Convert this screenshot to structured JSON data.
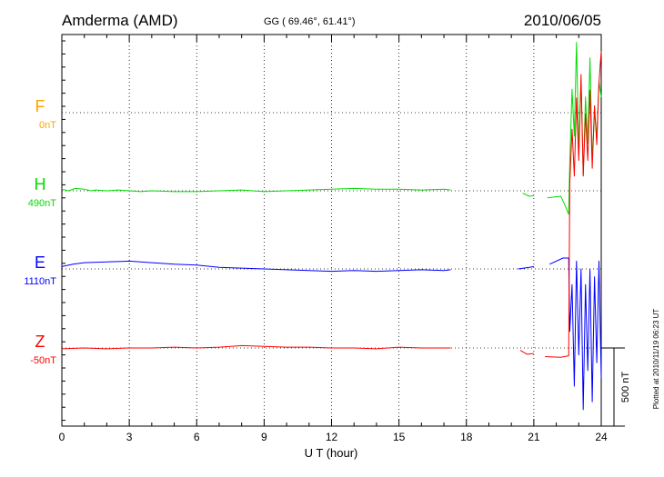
{
  "header": {
    "station": "Amderma (AMD)",
    "coords": "GG ( 69.46°,  61.41°)",
    "date": "2010/06/05"
  },
  "footer": {
    "plotted_note": "Plotted at 2010/11/19 06:23 UT"
  },
  "chart_data": {
    "type": "line",
    "title": "Amderma (AMD)",
    "xlabel": "U T (hour)",
    "xlim": [
      0,
      24
    ],
    "x_ticks": [
      "0",
      "3",
      "6",
      "9",
      "12",
      "15",
      "18",
      "21",
      "24"
    ],
    "grid": true,
    "scale_bar_label": "500 nT",
    "scale_bar_nT": 500,
    "series": [
      {
        "name": "F",
        "baseline_label": "0nT",
        "color": "#ffa500",
        "points": []
      },
      {
        "name": "H",
        "baseline_label": "490nT",
        "color": "#00dd00",
        "points": [
          [
            0,
            10
          ],
          [
            0.3,
            0
          ],
          [
            0.6,
            15
          ],
          [
            1.0,
            10
          ],
          [
            1.3,
            0
          ],
          [
            1.5,
            5
          ],
          [
            2,
            0
          ],
          [
            2.5,
            5
          ],
          [
            3,
            0
          ],
          [
            3.5,
            -5
          ],
          [
            4,
            0
          ],
          [
            5,
            -5
          ],
          [
            6,
            -5
          ],
          [
            7,
            0
          ],
          [
            8,
            5
          ],
          [
            9,
            -5
          ],
          [
            10,
            0
          ],
          [
            11,
            5
          ],
          [
            12,
            10
          ],
          [
            13,
            15
          ],
          [
            14,
            10
          ],
          [
            15,
            10
          ],
          [
            16,
            5
          ],
          [
            17,
            10
          ],
          [
            17.3,
            5
          ],
          null,
          [
            20.5,
            -15
          ],
          [
            20.8,
            -35
          ],
          [
            21.0,
            -30
          ],
          null,
          [
            21.6,
            -45
          ],
          [
            22.2,
            -35
          ],
          [
            22.35,
            -80
          ],
          [
            22.55,
            -150
          ],
          [
            22.6,
            180
          ],
          [
            22.7,
            650
          ],
          [
            22.8,
            350
          ],
          [
            22.9,
            950
          ],
          [
            23.0,
            250
          ],
          [
            23.1,
            700
          ],
          [
            23.2,
            100
          ],
          [
            23.3,
            600
          ],
          [
            23.4,
            300
          ],
          [
            23.5,
            850
          ],
          [
            23.6,
            200
          ],
          [
            23.7,
            500
          ],
          [
            23.8,
            350
          ],
          [
            23.9,
            700
          ],
          [
            24.0,
            600
          ]
        ]
      },
      {
        "name": "E",
        "baseline_label": "1110nT",
        "color": "#0000ff",
        "points": [
          [
            0,
            15
          ],
          [
            0.5,
            30
          ],
          [
            1,
            40
          ],
          [
            2,
            45
          ],
          [
            3,
            50
          ],
          [
            3.5,
            45
          ],
          [
            4,
            40
          ],
          [
            5,
            30
          ],
          [
            6,
            25
          ],
          [
            7,
            10
          ],
          [
            8,
            5
          ],
          [
            9,
            0
          ],
          [
            10,
            -5
          ],
          [
            11,
            -10
          ],
          [
            12,
            -15
          ],
          [
            13,
            -10
          ],
          [
            14,
            -15
          ],
          [
            15,
            -10
          ],
          [
            16,
            -5
          ],
          [
            17,
            -10
          ],
          [
            17.3,
            -5
          ],
          null,
          [
            20.3,
            0
          ],
          [
            20.8,
            10
          ],
          [
            21.0,
            15
          ],
          null,
          [
            21.7,
            30
          ],
          [
            22.3,
            70
          ],
          [
            22.55,
            70
          ],
          [
            22.6,
            -400
          ],
          [
            22.7,
            -100
          ],
          [
            22.8,
            -750
          ],
          [
            22.9,
            50
          ],
          [
            23.0,
            -550
          ],
          [
            23.1,
            0
          ],
          [
            23.2,
            -900
          ],
          [
            23.3,
            -100
          ],
          [
            23.4,
            -650
          ],
          [
            23.5,
            0
          ],
          [
            23.6,
            -850
          ],
          [
            23.7,
            -50
          ],
          [
            23.8,
            -600
          ],
          [
            23.9,
            50
          ],
          [
            24.0,
            -700
          ]
        ]
      },
      {
        "name": "Z",
        "baseline_label": "-50nT",
        "color": "#ff0000",
        "points": [
          [
            0,
            -5
          ],
          [
            1,
            0
          ],
          [
            2,
            -5
          ],
          [
            3,
            0
          ],
          [
            4,
            0
          ],
          [
            5,
            5
          ],
          [
            6,
            0
          ],
          [
            7,
            5
          ],
          [
            8,
            15
          ],
          [
            9,
            10
          ],
          [
            10,
            5
          ],
          [
            11,
            5
          ],
          [
            12,
            0
          ],
          [
            13,
            0
          ],
          [
            14,
            -5
          ],
          [
            15,
            5
          ],
          [
            16,
            0
          ],
          [
            17,
            0
          ],
          [
            17.3,
            0
          ],
          null,
          [
            20.4,
            -15
          ],
          [
            20.7,
            -40
          ],
          [
            21.0,
            -35
          ],
          null,
          [
            21.5,
            -55
          ],
          [
            22.2,
            -60
          ],
          [
            22.55,
            -50
          ],
          [
            22.6,
            1050
          ],
          [
            22.7,
            1400
          ],
          [
            22.8,
            1100
          ],
          [
            22.9,
            1600
          ],
          [
            23.0,
            1200
          ],
          [
            23.1,
            1750
          ],
          [
            23.2,
            1100
          ],
          [
            23.3,
            1500
          ],
          [
            23.4,
            1200
          ],
          [
            23.5,
            1650
          ],
          [
            23.6,
            1150
          ],
          [
            23.7,
            1550
          ],
          [
            23.8,
            1300
          ],
          [
            23.9,
            1700
          ],
          [
            24.0,
            1900
          ]
        ]
      }
    ]
  }
}
